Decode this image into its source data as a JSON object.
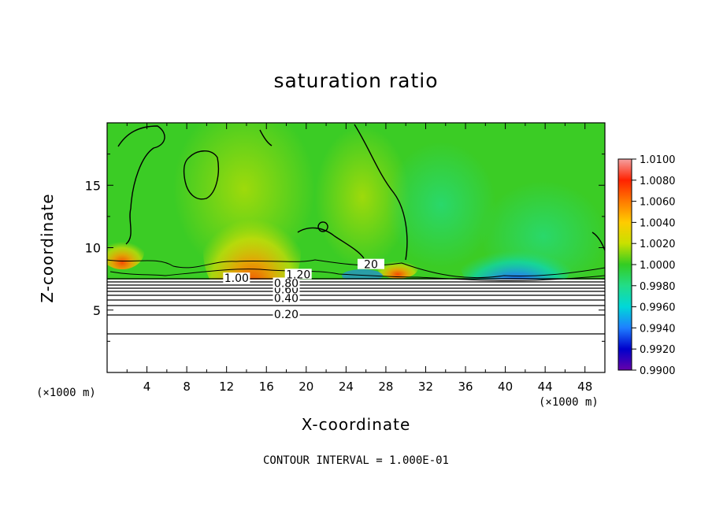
{
  "chart_data": {
    "type": "heatmap",
    "title": "saturation ratio",
    "xlabel": "X-coordinate",
    "ylabel": "Z-coordinate",
    "x_unit_label": "(×1000 m)",
    "footnote": "CONTOUR INTERVAL = 1.000E-01",
    "xlim": [
      0,
      50
    ],
    "ylim": [
      0,
      20
    ],
    "x_ticks": [
      4,
      8,
      12,
      16,
      20,
      24,
      28,
      32,
      36,
      40,
      44,
      48
    ],
    "x_tick_labels": [
      "4",
      "8",
      "12",
      "16",
      "20",
      "24",
      "28",
      "32",
      "36",
      "40",
      "44",
      "48"
    ],
    "y_ticks": [
      5,
      10,
      15
    ],
    "y_tick_labels": [
      "5",
      "10",
      "15"
    ],
    "colorbar": {
      "min": 0.99,
      "max": 1.01,
      "labels": [
        "1.0100",
        "1.0080",
        "1.0060",
        "1.0040",
        "1.0020",
        "1.0000",
        "0.9980",
        "0.9960",
        "0.9940",
        "0.9920",
        "0.9900"
      ],
      "colors": [
        "#ee5555",
        "#ff2200",
        "#ff7a00",
        "#ffcc00",
        "#c8e000",
        "#33cc22",
        "#22dd88",
        "#00d8d8",
        "#1e7fff",
        "#0000cc",
        "#6600aa"
      ]
    },
    "contour_labels": [
      {
        "text": "0.20",
        "x": 18,
        "z": 4.6
      },
      {
        "text": "0.40",
        "x": 18,
        "z": 5.9
      },
      {
        "text": "0.60",
        "x": 18,
        "z": 6.6
      },
      {
        "text": "0.80",
        "x": 18,
        "z": 7.1
      },
      {
        "text": "1.00",
        "x": 13,
        "z": 7.5
      },
      {
        "text": "1.20",
        "x": 19.2,
        "z": 7.8
      },
      {
        "text": "20",
        "x": 26.5,
        "z": 8.6
      }
    ],
    "colors": {
      "background_field": "#33cc22",
      "below_cloud": "#ffffff",
      "contour": "#000000"
    }
  }
}
